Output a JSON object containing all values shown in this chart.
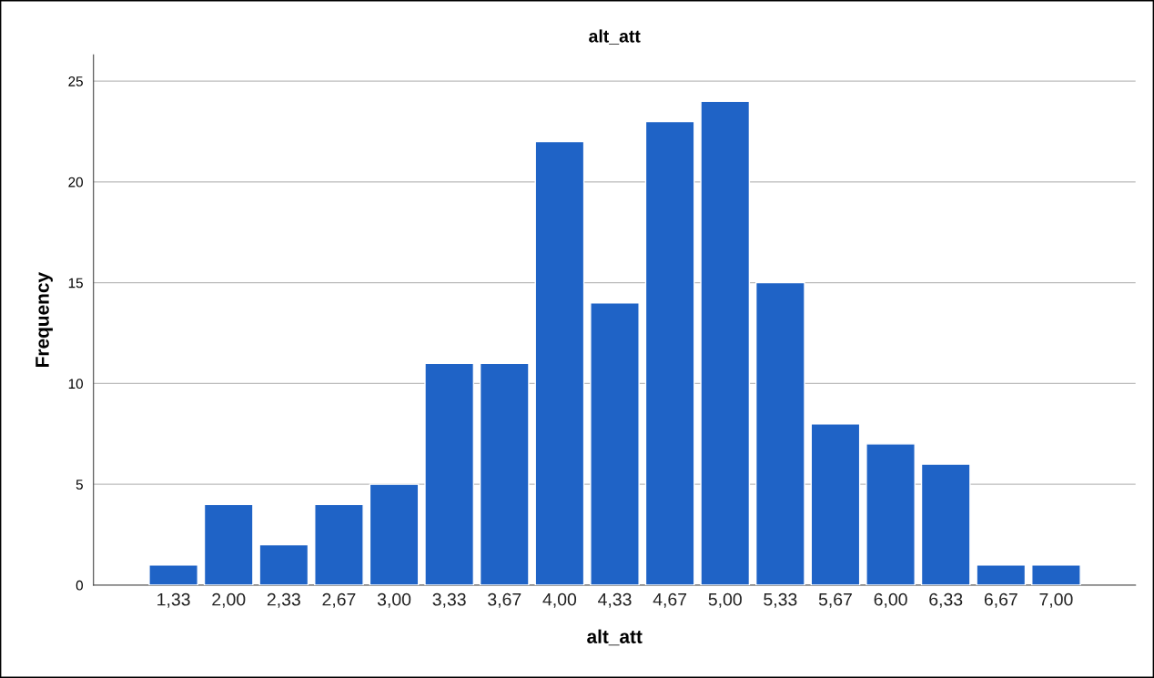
{
  "chart_data": {
    "type": "bar",
    "title": "alt_att",
    "xlabel": "alt_att",
    "ylabel": "Frequency",
    "categories": [
      "1,33",
      "2,00",
      "2,33",
      "2,67",
      "3,00",
      "3,33",
      "3,67",
      "4,00",
      "4,33",
      "4,67",
      "5,00",
      "5,33",
      "5,67",
      "6,00",
      "6,33",
      "6,67",
      "7,00"
    ],
    "values": [
      1,
      4,
      2,
      4,
      5,
      11,
      11,
      22,
      14,
      23,
      24,
      15,
      8,
      7,
      6,
      1,
      1
    ],
    "color": "#1f63c6",
    "ylim": [
      0,
      26.3
    ],
    "yticks": [
      0,
      5,
      10,
      15,
      20,
      25
    ],
    "grid": "y",
    "legend": false
  }
}
